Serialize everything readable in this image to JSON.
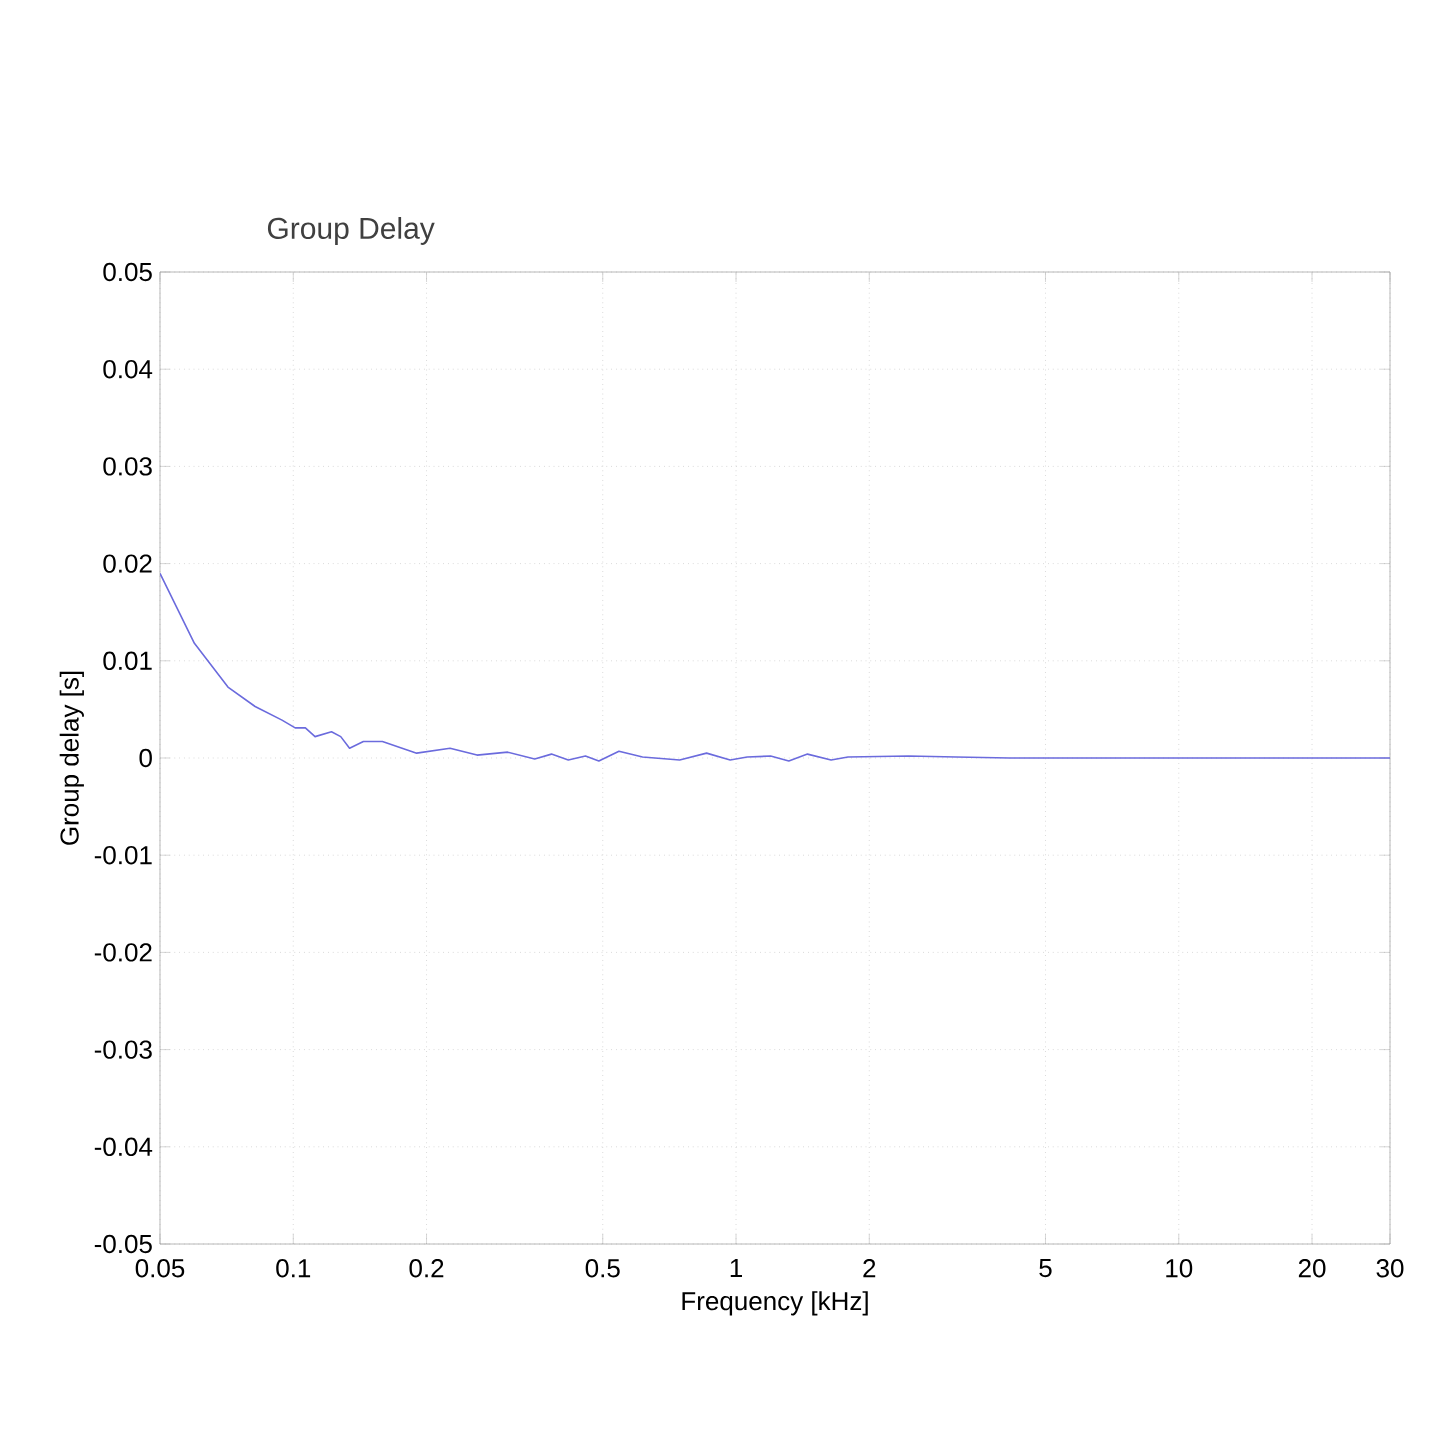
{
  "chart_data": {
    "type": "line",
    "title": "Group Delay",
    "xlabel": "Frequency [kHz]",
    "ylabel": "Group delay [s]",
    "log": "x",
    "grid": true,
    "color": "#6b6bdd",
    "xlim": [
      0.05,
      30
    ],
    "ylim": [
      -0.05,
      0.05
    ],
    "xticks": [
      0.05,
      0.1,
      0.2,
      0.5,
      1,
      2,
      5,
      10,
      20,
      30
    ],
    "yticks": [
      -0.05,
      -0.04,
      -0.03,
      -0.02,
      -0.01,
      0,
      0.01,
      0.02,
      0.03,
      0.04,
      0.05
    ],
    "x": [
      0.05,
      0.0598,
      0.0712,
      0.082,
      0.0943,
      0.101,
      0.1065,
      0.112,
      0.122,
      0.128,
      0.134,
      0.144,
      0.159,
      0.19,
      0.226,
      0.26,
      0.305,
      0.351,
      0.383,
      0.418,
      0.457,
      0.49,
      0.544,
      0.615,
      0.746,
      0.858,
      0.97,
      1.06,
      1.197,
      1.316,
      1.45,
      1.64,
      1.79,
      2.45,
      3.14,
      4.15,
      8,
      15,
      30
    ],
    "values": [
      0.019,
      0.0118,
      0.0073,
      0.0053,
      0.0039,
      0.0031,
      0.0031,
      0.0022,
      0.0027,
      0.0022,
      0.001,
      0.0017,
      0.0017,
      0.0005,
      0.001,
      0.0003,
      0.0006,
      -0.0001,
      0.0004,
      -0.0002,
      0.0002,
      -0.0003,
      0.0007,
      0.0001,
      -0.0002,
      0.0005,
      -0.0002,
      0.0001,
      0.0002,
      -0.0003,
      0.0004,
      -0.0002,
      0.0001,
      0.0002,
      0.0001,
      0,
      0,
      0,
      0
    ]
  }
}
